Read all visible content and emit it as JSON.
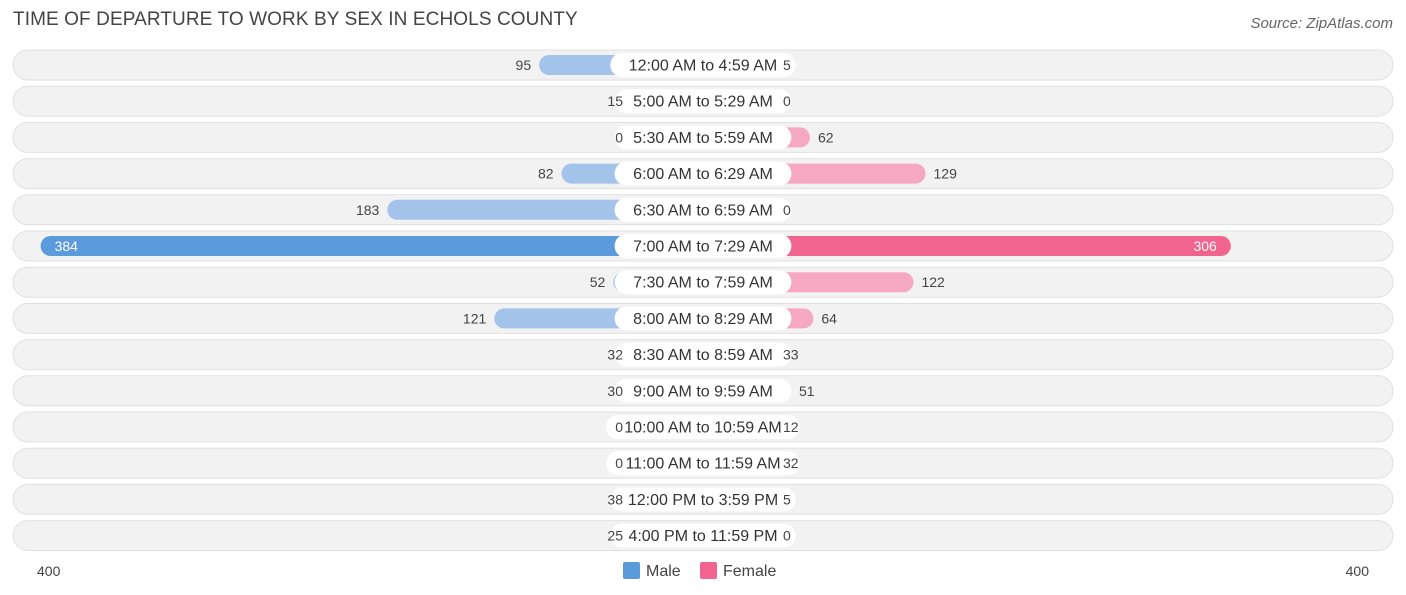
{
  "title": "TIME OF DEPARTURE TO WORK BY SEX IN ECHOLS COUNTY",
  "source": "Source: ZipAtlas.com",
  "colors": {
    "male": "#a4c3ea",
    "male_strong": "#5b9bdc",
    "female": "#f6a8c2",
    "female_strong": "#f0648f",
    "row_bg": "#f2f2f2",
    "row_border": "#e0e0e0"
  },
  "chart_data": {
    "type": "bar",
    "orientation": "horizontal-diverging",
    "title": "TIME OF DEPARTURE TO WORK BY SEX IN ECHOLS COUNTY",
    "categories": [
      "12:00 AM to 4:59 AM",
      "5:00 AM to 5:29 AM",
      "5:30 AM to 5:59 AM",
      "6:00 AM to 6:29 AM",
      "6:30 AM to 6:59 AM",
      "7:00 AM to 7:29 AM",
      "7:30 AM to 7:59 AM",
      "8:00 AM to 8:29 AM",
      "8:30 AM to 8:59 AM",
      "9:00 AM to 9:59 AM",
      "10:00 AM to 10:59 AM",
      "11:00 AM to 11:59 AM",
      "12:00 PM to 3:59 PM",
      "4:00 PM to 11:59 PM"
    ],
    "series": [
      {
        "name": "Male",
        "values": [
          95,
          15,
          0,
          82,
          183,
          384,
          52,
          121,
          32,
          30,
          0,
          0,
          38,
          25
        ]
      },
      {
        "name": "Female",
        "values": [
          5,
          0,
          62,
          129,
          0,
          306,
          122,
          64,
          33,
          51,
          12,
          32,
          5,
          0
        ]
      }
    ],
    "axis_min_label": "400",
    "axis_max_label": "400",
    "xlim": [
      -400,
      400
    ],
    "legend": [
      "Male",
      "Female"
    ],
    "legend_position": "bottom-center"
  }
}
